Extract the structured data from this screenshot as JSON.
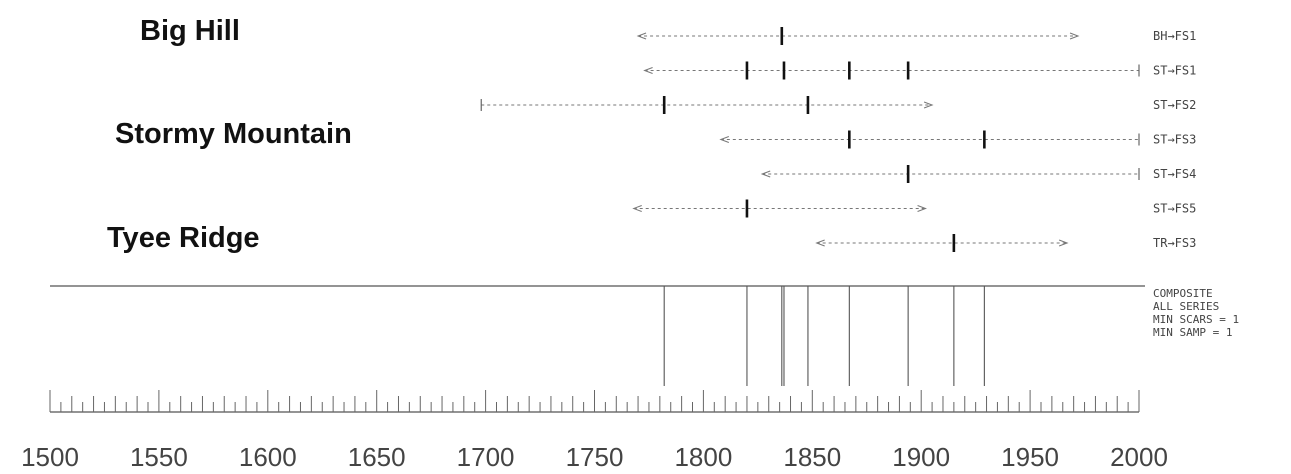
{
  "sites": [
    {
      "name": "Big Hill"
    },
    {
      "name": "Stormy Mountain"
    },
    {
      "name": "Tyee Ridge"
    }
  ],
  "chart_data": {
    "type": "fire-scar-chronology",
    "title": "",
    "xlabel": "",
    "ylabel": "",
    "xlim": [
      1500,
      2000
    ],
    "x_ticks": [
      1500,
      1550,
      1600,
      1650,
      1700,
      1750,
      1800,
      1850,
      1900,
      1950,
      2000
    ],
    "grid": false,
    "series": [
      {
        "label": "BH→FS1",
        "start": 1770,
        "end": 1972,
        "start_bar": false,
        "end_bar": false,
        "scars": [
          1836
        ]
      },
      {
        "label": "ST→FS1",
        "start": 1773,
        "end": 2000,
        "start_bar": false,
        "end_bar": true,
        "scars": [
          1820,
          1837,
          1867,
          1894
        ]
      },
      {
        "label": "ST→FS2",
        "start": 1698,
        "end": 1905,
        "start_bar": true,
        "end_bar": false,
        "scars": [
          1782,
          1848
        ]
      },
      {
        "label": "ST→FS3",
        "start": 1808,
        "end": 2000,
        "start_bar": false,
        "end_bar": true,
        "scars": [
          1867,
          1929
        ]
      },
      {
        "label": "ST→FS4",
        "start": 1827,
        "end": 2000,
        "start_bar": false,
        "end_bar": true,
        "scars": [
          1894
        ]
      },
      {
        "label": "ST→FS5",
        "start": 1768,
        "end": 1902,
        "start_bar": false,
        "end_bar": false,
        "scars": [
          1820
        ]
      },
      {
        "label": "TR→FS3",
        "start": 1852,
        "end": 1967,
        "start_bar": false,
        "end_bar": false,
        "scars": [
          1915
        ]
      }
    ],
    "composite": {
      "lines": [
        "COMPOSITE",
        "ALL  SERIES",
        "MIN  SCARS  =  1",
        "MIN  SAMP  =  1"
      ],
      "years": [
        1782,
        1820,
        1836,
        1837,
        1848,
        1867,
        1894,
        1915,
        1929
      ]
    }
  }
}
